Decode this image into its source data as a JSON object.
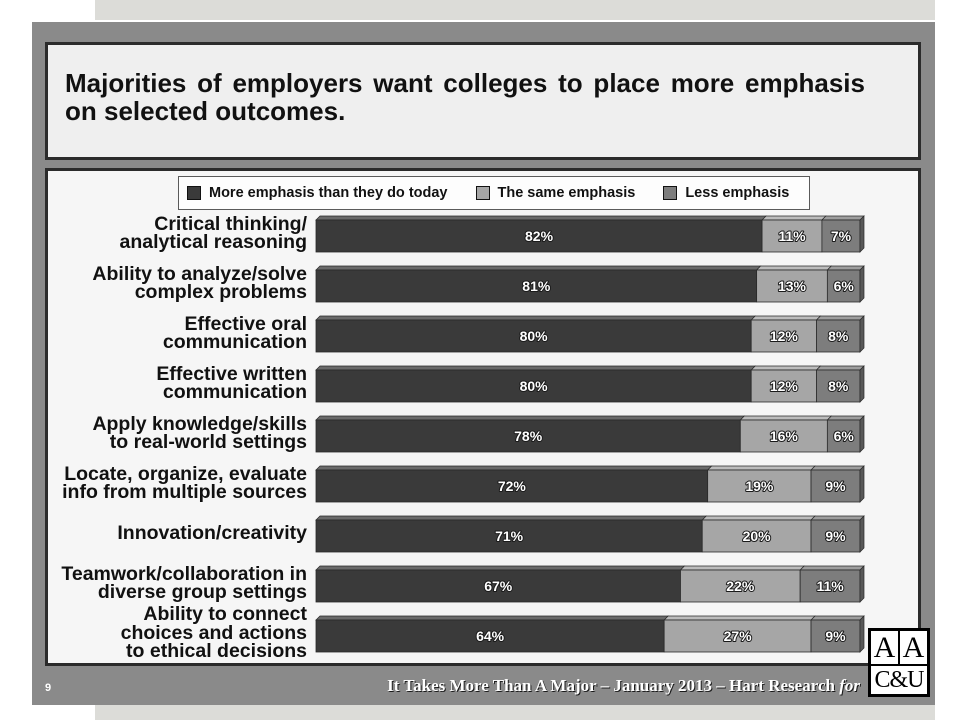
{
  "slide": {
    "title": "Majorities of employers want colleges to place more emphasis on selected outcomes.",
    "page_number": "9",
    "footer": {
      "text": "It Takes More Than A Major – January 2013 – Hart Research",
      "italic": "for"
    },
    "logo": {
      "top_left": "A",
      "top_right": "A",
      "bottom": "C&U"
    }
  },
  "chart_data": {
    "type": "bar",
    "orientation": "horizontal",
    "stacked": true,
    "categories": [
      "Critical thinking/\nanalytical reasoning",
      "Ability to analyze/solve\ncomplex problems",
      "Effective oral\ncommunication",
      "Effective written\ncommunication",
      "Apply knowledge/skills\nto real-world settings",
      "Locate, organize, evaluate\ninfo from multiple sources",
      "Innovation/creativity",
      "Teamwork/collaboration in\ndiverse group settings",
      "Ability to connect\nchoices and actions\nto ethical decisions"
    ],
    "series": [
      {
        "name": "More emphasis than they do today",
        "color": "#3a3a3a",
        "values": [
          82,
          81,
          80,
          80,
          78,
          72,
          71,
          67,
          64
        ],
        "labels": [
          "82%",
          "81%",
          "80%",
          "80%",
          "78%",
          "72%",
          "71%",
          "67%",
          "64%"
        ]
      },
      {
        "name": "The same emphasis",
        "color": "#a6a6a6",
        "values": [
          11,
          13,
          12,
          12,
          16,
          19,
          20,
          22,
          27
        ],
        "labels": [
          "11%",
          "13%",
          "12%",
          "12%",
          "16%",
          "19%",
          "20%",
          "22%",
          "27%"
        ]
      },
      {
        "name": "Less emphasis",
        "color": "#7d7d7d",
        "values": [
          7,
          6,
          8,
          8,
          6,
          9,
          9,
          11,
          9
        ],
        "labels": [
          "7%",
          "6%",
          "8%",
          "8%",
          "6%",
          "9%",
          "9%",
          "11%",
          "9%"
        ]
      }
    ],
    "xlim": [
      0,
      100
    ],
    "legend": "top",
    "grid": false
  }
}
